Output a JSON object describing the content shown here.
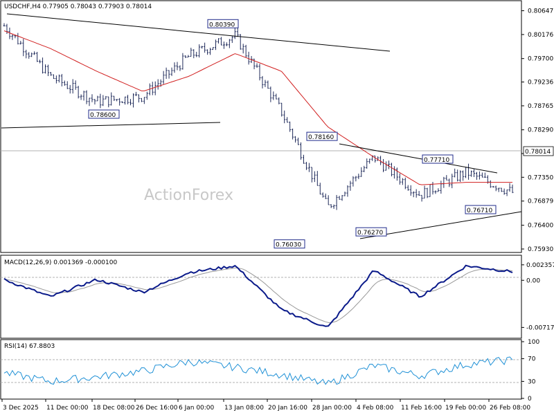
{
  "header": {
    "symbol_line": "USDCHF,H4  0.77905 0.78043 0.77903 0.78014"
  },
  "watermark": "ActionForex",
  "price_panel": {
    "y_ticks": [
      "0.80647",
      "0.80176",
      "0.79700",
      "0.79236",
      "0.78765",
      "0.78290",
      "0.77820",
      "0.77350",
      "0.76879",
      "0.76400",
      "0.75930"
    ],
    "current_price": "0.78014",
    "annotations": [
      {
        "text": "0.80390",
        "value": 0.8039
      },
      {
        "text": "0.78600",
        "value": 0.786
      },
      {
        "text": "0.78160",
        "value": 0.7816
      },
      {
        "text": "0.77710",
        "value": 0.7771
      },
      {
        "text": "0.76710",
        "value": 0.7671
      },
      {
        "text": "0.76270",
        "value": 0.7627
      },
      {
        "text": "0.76030",
        "value": 0.7603
      }
    ]
  },
  "macd_panel": {
    "label": "MACD(12,26,9) 0.001369 -0.000100",
    "y_ticks": [
      "0.002357",
      "0.00",
      "-0.007172"
    ]
  },
  "rsi_panel": {
    "label": "RSI(14) 67.8803",
    "y_ticks": [
      "100",
      "70",
      "30",
      "0"
    ]
  },
  "x_axis": {
    "labels": [
      "3 Dec 2025",
      "11 Dec 00:00",
      "18 Dec 08:00",
      "26 Dec 16:00",
      "6 Jan 00:00",
      "13 Jan 08:00",
      "20 Jan 16:00",
      "28 Jan 00:00",
      "4 Feb 08:00",
      "11 Feb 16:00",
      "19 Feb 00:00",
      "26 Feb 08:00"
    ]
  },
  "colors": {
    "bars": "#1f2a5a",
    "ma_line": "#d11f1f",
    "macd_line": "#0a1a8a",
    "signal_line": "#999999",
    "rsi_line": "#1e90d6",
    "trendline": "#000000",
    "current_price_line": "#b0b0b0",
    "watermark": "#c8c8c8"
  },
  "chart_data": [
    {
      "type": "candlestick",
      "title": "USDCHF,H4",
      "series": [
        {
          "name": "price_close_approx",
          "x": [
            "3 Dec 2025",
            "11 Dec 00:00",
            "18 Dec 08:00",
            "26 Dec 16:00",
            "6 Jan 00:00",
            "13 Jan 08:00",
            "20 Jan 16:00",
            "28 Jan 00:00",
            "4 Feb 08:00",
            "11 Feb 16:00",
            "19 Feb 00:00",
            "26 Feb 08:00"
          ],
          "values": [
            0.8035,
            0.7935,
            0.7885,
            0.7895,
            0.7975,
            0.8015,
            0.7865,
            0.7675,
            0.7775,
            0.77,
            0.7745,
            0.7705
          ]
        },
        {
          "name": "moving_average_approx",
          "x": [
            "3 Dec 2025",
            "11 Dec 00:00",
            "18 Dec 08:00",
            "26 Dec 16:00",
            "6 Jan 00:00",
            "13 Jan 08:00",
            "20 Jan 16:00",
            "28 Jan 00:00",
            "4 Feb 08:00",
            "11 Feb 16:00",
            "19 Feb 00:00",
            "26 Feb 08:00"
          ],
          "values": [
            0.8025,
            0.799,
            0.7945,
            0.7905,
            0.7935,
            0.798,
            0.7945,
            0.7835,
            0.7775,
            0.772,
            0.7725,
            0.7725
          ]
        }
      ],
      "last_price": 0.78014,
      "ylim": [
        0.7593,
        0.8075
      ],
      "trendlines": [
        {
          "from": [
            0.8075,
            "3 Dec 2025"
          ],
          "to": [
            0.8015,
            "mid-Jan"
          ]
        },
        {
          "from": [
            0.7865,
            "3 Dec 2025"
          ],
          "to": [
            0.787,
            "6 Jan"
          ]
        },
        {
          "from": [
            0.7816,
            "28 Jan"
          ],
          "to": [
            0.7757,
            "26 Feb"
          ]
        },
        {
          "from": [
            0.7627,
            "5 Feb"
          ],
          "to": [
            0.7675,
            "end"
          ]
        }
      ]
    },
    {
      "type": "line",
      "title": "MACD(12,26,9)",
      "series": [
        {
          "name": "MACD",
          "x": [
            "3 Dec 2025",
            "11 Dec 00:00",
            "18 Dec 08:00",
            "26 Dec 16:00",
            "6 Jan 00:00",
            "13 Jan 08:00",
            "20 Jan 16:00",
            "28 Jan 00:00",
            "4 Feb 08:00",
            "11 Feb 16:00",
            "19 Feb 00:00",
            "26 Feb 08:00"
          ],
          "values": [
            0.0001,
            -0.0025,
            0.0001,
            -0.0018,
            0.0012,
            0.0022,
            -0.0045,
            -0.0072,
            0.0015,
            -0.0025,
            0.0022,
            0.0013
          ]
        }
      ],
      "last_values": {
        "macd": 0.001369,
        "signal": -0.0001
      },
      "ylim": [
        -0.0085,
        0.0035
      ]
    },
    {
      "type": "line",
      "title": "RSI(14)",
      "series": [
        {
          "name": "RSI",
          "x": [
            "3 Dec 2025",
            "11 Dec 00:00",
            "18 Dec 08:00",
            "26 Dec 16:00",
            "6 Jan 00:00",
            "13 Jan 08:00",
            "20 Jan 16:00",
            "28 Jan 00:00",
            "4 Feb 08:00",
            "11 Feb 16:00",
            "19 Feb 00:00",
            "26 Feb 08:00"
          ],
          "values": [
            45,
            30,
            38,
            48,
            65,
            55,
            42,
            25,
            58,
            40,
            60,
            67.88
          ]
        }
      ],
      "ylim": [
        0,
        100
      ],
      "levels": [
        30,
        70
      ]
    }
  ]
}
